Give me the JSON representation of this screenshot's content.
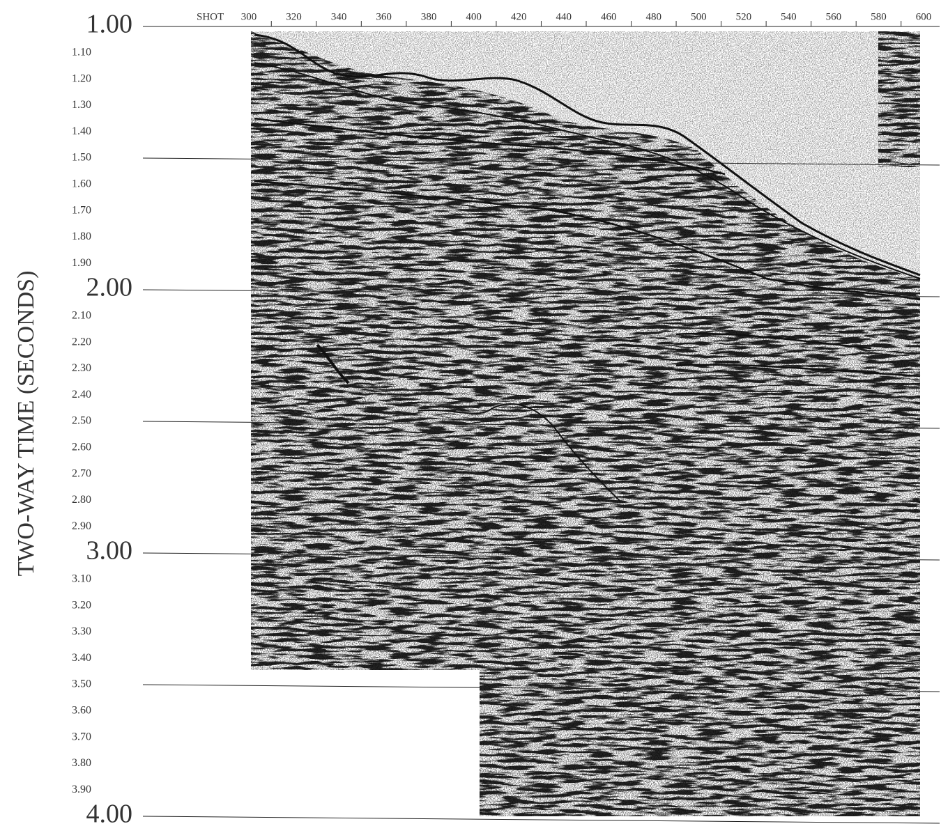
{
  "x_axis": {
    "prefix": "SHOT",
    "ticks": [
      "300",
      "320",
      "340",
      "360",
      "380",
      "400",
      "420",
      "440",
      "460",
      "480",
      "500",
      "520",
      "540",
      "560",
      "580",
      "600"
    ]
  },
  "y_axis": {
    "label": "TWO-WAY TIME (SECONDS)",
    "ticks": [
      "1.00",
      "1.10",
      "1.20",
      "1.30",
      "1.40",
      "1.50",
      "1.60",
      "1.70",
      "1.80",
      "1.90",
      "2.00",
      "2.10",
      "2.20",
      "2.30",
      "2.40",
      "2.50",
      "2.60",
      "2.70",
      "2.80",
      "2.90",
      "3.00",
      "3.10",
      "3.20",
      "3.30",
      "3.40",
      "3.50",
      "3.60",
      "3.70",
      "3.80",
      "3.90",
      "4.00"
    ]
  }
}
